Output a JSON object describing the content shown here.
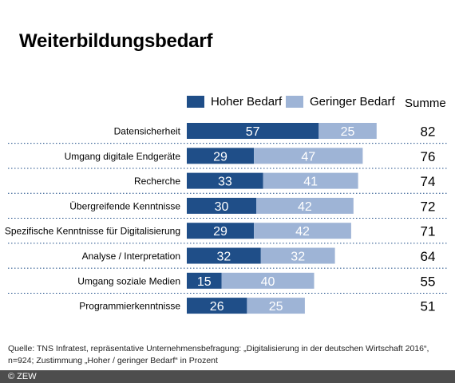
{
  "chart_data": {
    "type": "bar",
    "orientation": "horizontal",
    "stacked": true,
    "title": "Weiterbildungsbedarf",
    "categories": [
      "Datensicherheit",
      "Umgang digitale Endgeräte",
      "Recherche",
      "Übergreifende Kenntnisse",
      "Spezifische Kenntnisse für Digitalisierung",
      "Analyse / Interpretation",
      "Umgang soziale Medien",
      "Programmierkenntnisse"
    ],
    "series": [
      {
        "name": "Hoher Bedarf",
        "color": "#1f4e88",
        "values": [
          57,
          29,
          33,
          30,
          29,
          32,
          15,
          26
        ]
      },
      {
        "name": "Geringer Bedarf",
        "color": "#9eb4d6",
        "values": [
          25,
          47,
          41,
          42,
          42,
          32,
          40,
          25
        ]
      }
    ],
    "totals_label": "Summe",
    "totals": [
      82,
      76,
      74,
      72,
      71,
      64,
      55,
      51
    ],
    "xlim": [
      0,
      100
    ],
    "legend_position": "top"
  },
  "source": "Quelle: TNS Infratest, repräsentative  Unternehmensbefragung: „Digitalisierung in der deutschen Wirtschaft 2016“, n=924; Zustimmung  „Hoher / geringer Bedarf“ in Prozent",
  "footer": "© ZEW"
}
